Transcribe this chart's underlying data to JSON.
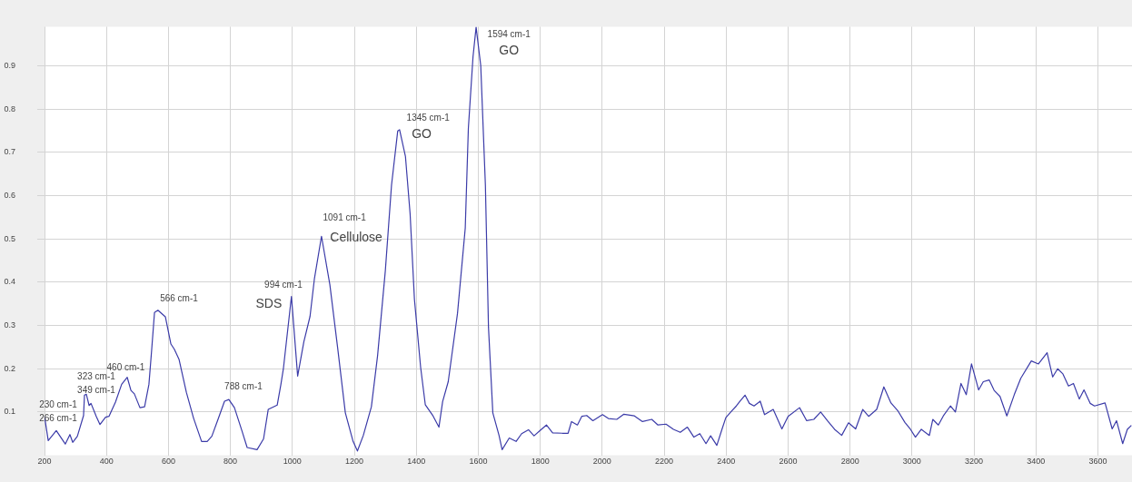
{
  "chart_data": {
    "type": "line",
    "color": "#3b3ba8",
    "marker": "none",
    "grid": true,
    "xlim": [
      200,
      3710
    ],
    "ylim": [
      0,
      0.99
    ],
    "xticks": [
      200,
      400,
      600,
      800,
      1000,
      1200,
      1400,
      1600,
      1800,
      2000,
      2200,
      2400,
      2600,
      2800,
      3000,
      3200,
      3400,
      3600
    ],
    "yticks": [
      0.1,
      0.2,
      0.3,
      0.4,
      0.5,
      0.6,
      0.7,
      0.8,
      0.9
    ],
    "x": [
      200,
      212,
      238,
      267,
      282,
      291,
      306,
      326,
      329,
      335,
      344,
      350,
      367,
      379,
      397,
      408,
      429,
      449,
      467,
      479,
      490,
      508,
      523,
      537,
      546,
      555,
      566,
      590,
      608,
      619,
      634,
      658,
      681,
      707,
      725,
      740,
      760,
      781,
      795,
      813,
      837,
      854,
      886,
      907,
      922,
      939,
      951,
      963,
      971,
      997,
      1012,
      1017,
      1037,
      1057,
      1071,
      1094,
      1121,
      1146,
      1171,
      1196,
      1210,
      1229,
      1255,
      1275,
      1300,
      1320,
      1340,
      1346,
      1365,
      1380,
      1394,
      1414,
      1429,
      1454,
      1473,
      1485,
      1503,
      1533,
      1558,
      1568,
      1583,
      1593,
      1608,
      1623,
      1633,
      1647,
      1667,
      1677,
      1700,
      1722,
      1740,
      1762,
      1780,
      1802,
      1820,
      1840,
      1871,
      1890,
      1901,
      1920,
      1934,
      1950,
      1970,
      2001,
      2020,
      2047,
      2070,
      2104,
      2130,
      2160,
      2180,
      2206,
      2230,
      2252,
      2275,
      2296,
      2315,
      2335,
      2350,
      2370,
      2387,
      2399,
      2415,
      2433,
      2445,
      2461,
      2475,
      2490,
      2510,
      2524,
      2552,
      2580,
      2600,
      2637,
      2660,
      2683,
      2705,
      2728,
      2750,
      2773,
      2795,
      2818,
      2841,
      2860,
      2886,
      2909,
      2932,
      2955,
      2977,
      2995,
      3011,
      3030,
      3056,
      3067,
      3085,
      3101,
      3124,
      3140,
      3158,
      3175,
      3192,
      3215,
      3230,
      3249,
      3265,
      3284,
      3306,
      3330,
      3351,
      3385,
      3408,
      3436,
      3454,
      3470,
      3487,
      3505,
      3521,
      3540,
      3555,
      3575,
      3589,
      3623,
      3646,
      3660,
      3680,
      3695,
      3708
    ],
    "values": [
      0.09,
      0.034,
      0.057,
      0.026,
      0.048,
      0.03,
      0.044,
      0.092,
      0.139,
      0.141,
      0.115,
      0.12,
      0.09,
      0.071,
      0.088,
      0.09,
      0.123,
      0.164,
      0.18,
      0.15,
      0.142,
      0.11,
      0.112,
      0.164,
      0.245,
      0.33,
      0.335,
      0.32,
      0.257,
      0.245,
      0.222,
      0.145,
      0.086,
      0.032,
      0.032,
      0.044,
      0.083,
      0.125,
      0.129,
      0.11,
      0.057,
      0.018,
      0.013,
      0.038,
      0.106,
      0.112,
      0.116,
      0.164,
      0.2,
      0.367,
      0.229,
      0.183,
      0.262,
      0.321,
      0.407,
      0.506,
      0.394,
      0.249,
      0.098,
      0.032,
      0.01,
      0.046,
      0.112,
      0.23,
      0.426,
      0.624,
      0.749,
      0.752,
      0.69,
      0.558,
      0.36,
      0.203,
      0.117,
      0.091,
      0.065,
      0.124,
      0.17,
      0.328,
      0.525,
      0.755,
      0.92,
      0.989,
      0.9,
      0.624,
      0.295,
      0.098,
      0.046,
      0.013,
      0.04,
      0.032,
      0.05,
      0.059,
      0.045,
      0.059,
      0.07,
      0.052,
      0.051,
      0.051,
      0.078,
      0.07,
      0.09,
      0.092,
      0.08,
      0.094,
      0.085,
      0.083,
      0.095,
      0.091,
      0.078,
      0.083,
      0.07,
      0.072,
      0.06,
      0.053,
      0.065,
      0.042,
      0.05,
      0.027,
      0.045,
      0.023,
      0.061,
      0.087,
      0.1,
      0.114,
      0.125,
      0.139,
      0.12,
      0.114,
      0.125,
      0.094,
      0.106,
      0.061,
      0.09,
      0.11,
      0.08,
      0.083,
      0.1,
      0.079,
      0.06,
      0.046,
      0.075,
      0.061,
      0.106,
      0.09,
      0.106,
      0.158,
      0.121,
      0.102,
      0.076,
      0.06,
      0.042,
      0.06,
      0.046,
      0.083,
      0.07,
      0.091,
      0.114,
      0.1,
      0.166,
      0.14,
      0.211,
      0.151,
      0.17,
      0.174,
      0.15,
      0.136,
      0.091,
      0.14,
      0.178,
      0.218,
      0.211,
      0.237,
      0.181,
      0.2,
      0.188,
      0.16,
      0.166,
      0.13,
      0.151,
      0.12,
      0.114,
      0.121,
      0.061,
      0.08,
      0.027,
      0.06,
      0.069
    ],
    "annotations": [
      "230 cm-1",
      "266 cm-1",
      "323 cm-1",
      "349 cm-1",
      "460 cm-1",
      "566 cm-1",
      "788 cm-1",
      "994 cm-1",
      "SDS",
      "1091 cm-1",
      "Cellulose",
      "1345 cm-1",
      "GO",
      "1594 cm-1",
      "GO"
    ]
  }
}
